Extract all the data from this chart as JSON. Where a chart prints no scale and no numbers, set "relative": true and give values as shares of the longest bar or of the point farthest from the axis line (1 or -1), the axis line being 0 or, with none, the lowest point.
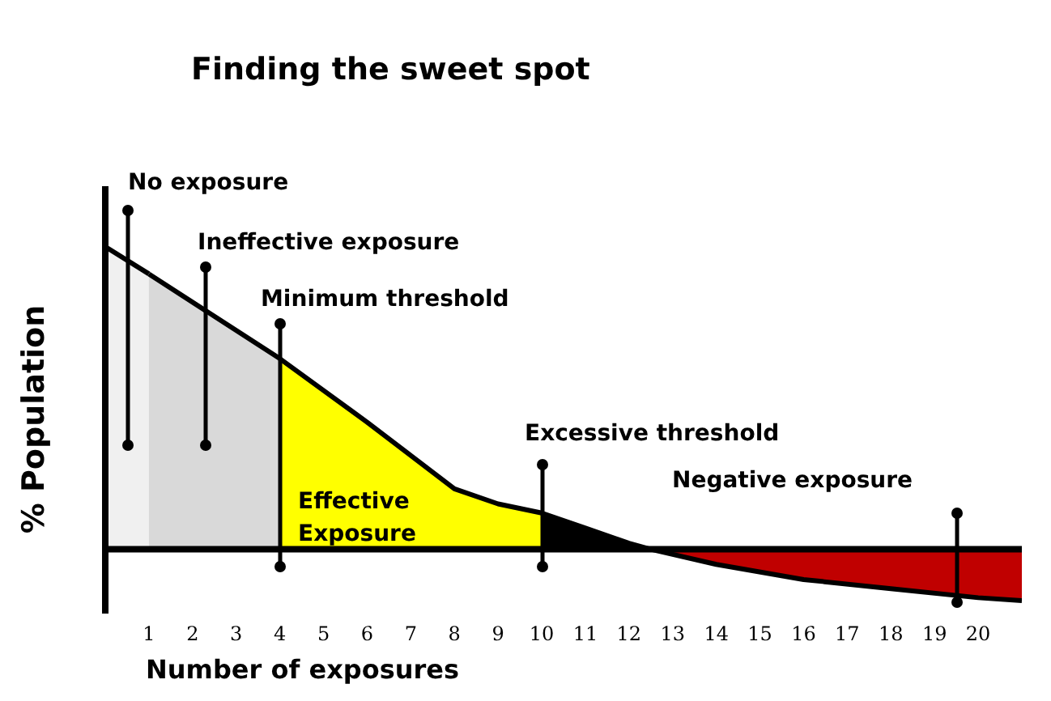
{
  "chart_data": {
    "type": "area",
    "title": "Finding the sweet spot",
    "xlabel": "Number of exposures",
    "ylabel": "% Population",
    "relative": true,
    "xlim": [
      0,
      21
    ],
    "xticks": [
      1,
      2,
      3,
      4,
      5,
      6,
      7,
      8,
      9,
      10,
      11,
      12,
      13,
      14,
      15,
      16,
      17,
      18,
      19,
      20
    ],
    "series": [
      {
        "color": "#f0f0f0",
        "x": [
          0,
          1
        ],
        "values": [
          1,
          0.91
        ]
      },
      {
        "color": "#d9d9d9",
        "x": [
          1,
          2.5,
          4
        ],
        "values": [
          0.91,
          0.77,
          0.63
        ]
      },
      {
        "color": "#ffff00",
        "x": [
          4,
          6,
          8,
          9,
          10
        ],
        "values": [
          0.63,
          0.42,
          0.2,
          0.15,
          0.12
        ]
      },
      {
        "color": "#000000",
        "x": [
          10,
          11,
          12,
          12.5
        ],
        "values": [
          0.12,
          0.07,
          0.02,
          0
        ]
      },
      {
        "color": "#c00000",
        "x": [
          12.5,
          14,
          16,
          18,
          20,
          21
        ],
        "values": [
          0,
          -0.05,
          -0.1,
          -0.13,
          -0.16,
          -0.17
        ]
      }
    ],
    "annotations": [
      "No exposure",
      "Ineffective exposure",
      "Minimum threshold",
      "Excessive threshold",
      "Negative exposure",
      "Effective Exposure"
    ]
  }
}
